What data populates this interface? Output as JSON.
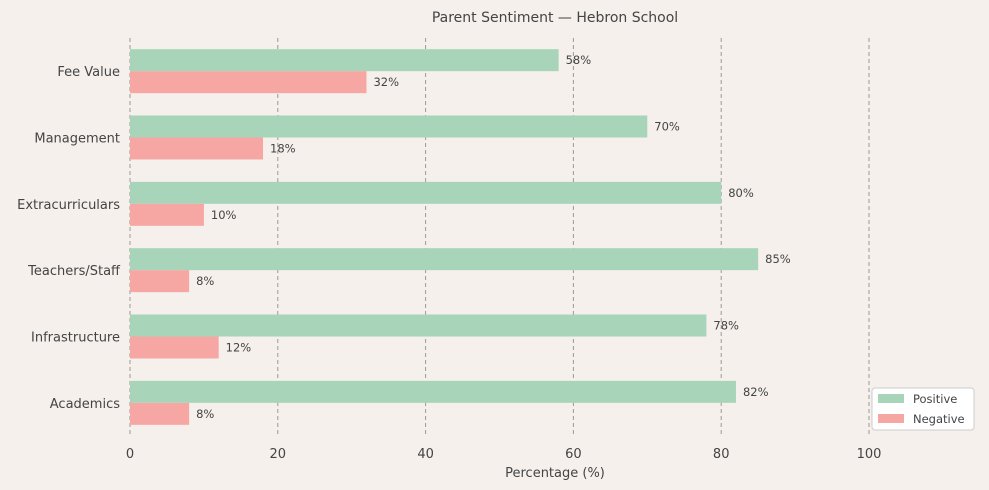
{
  "chart_data": {
    "type": "bar",
    "orientation": "horizontal",
    "title": "Parent Sentiment — Hebron School",
    "xlabel": "Percentage (%)",
    "ylabel": "",
    "xlim": [
      0,
      115
    ],
    "xticks": [
      0,
      20,
      40,
      60,
      80,
      100
    ],
    "grid": "x, dashed",
    "legend": "bottom-right",
    "categories": [
      "Fee Value",
      "Management",
      "Extracurriculars",
      "Teachers/Staff",
      "Infrastructure",
      "Academics"
    ],
    "series": [
      {
        "name": "Positive",
        "color": "#a8d5ba",
        "values": [
          58,
          70,
          80,
          85,
          78,
          82
        ]
      },
      {
        "name": "Negative",
        "color": "#f6a7a3",
        "values": [
          32,
          18,
          10,
          8,
          12,
          8
        ]
      }
    ],
    "value_suffix": "%"
  }
}
